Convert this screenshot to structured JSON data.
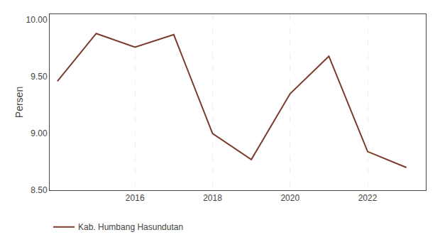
{
  "chart_data": {
    "type": "line",
    "x": [
      2014,
      2015,
      2016,
      2017,
      2018,
      2019,
      2020,
      2021,
      2022,
      2023
    ],
    "series": [
      {
        "name": "Kab. Humbang Hasundutan",
        "color": "#7B3A2A",
        "values": [
          9.46,
          9.88,
          9.76,
          9.87,
          9.0,
          8.77,
          9.35,
          9.68,
          8.84,
          8.7
        ]
      }
    ],
    "ylabel": "Persen",
    "xlim": [
      2013.8,
      2023.5
    ],
    "xticks": [
      2016,
      2018,
      2020,
      2022
    ],
    "ylim": [
      8.5,
      10.05
    ],
    "yticks": [
      {
        "value": 8.5,
        "label": "8.50"
      },
      {
        "value": 9,
        "label": "9.00"
      },
      {
        "value": 9.5,
        "label": "9.50"
      },
      {
        "value": 10,
        "label": "10.00"
      }
    ],
    "grid": "x",
    "legend": "bottom"
  }
}
